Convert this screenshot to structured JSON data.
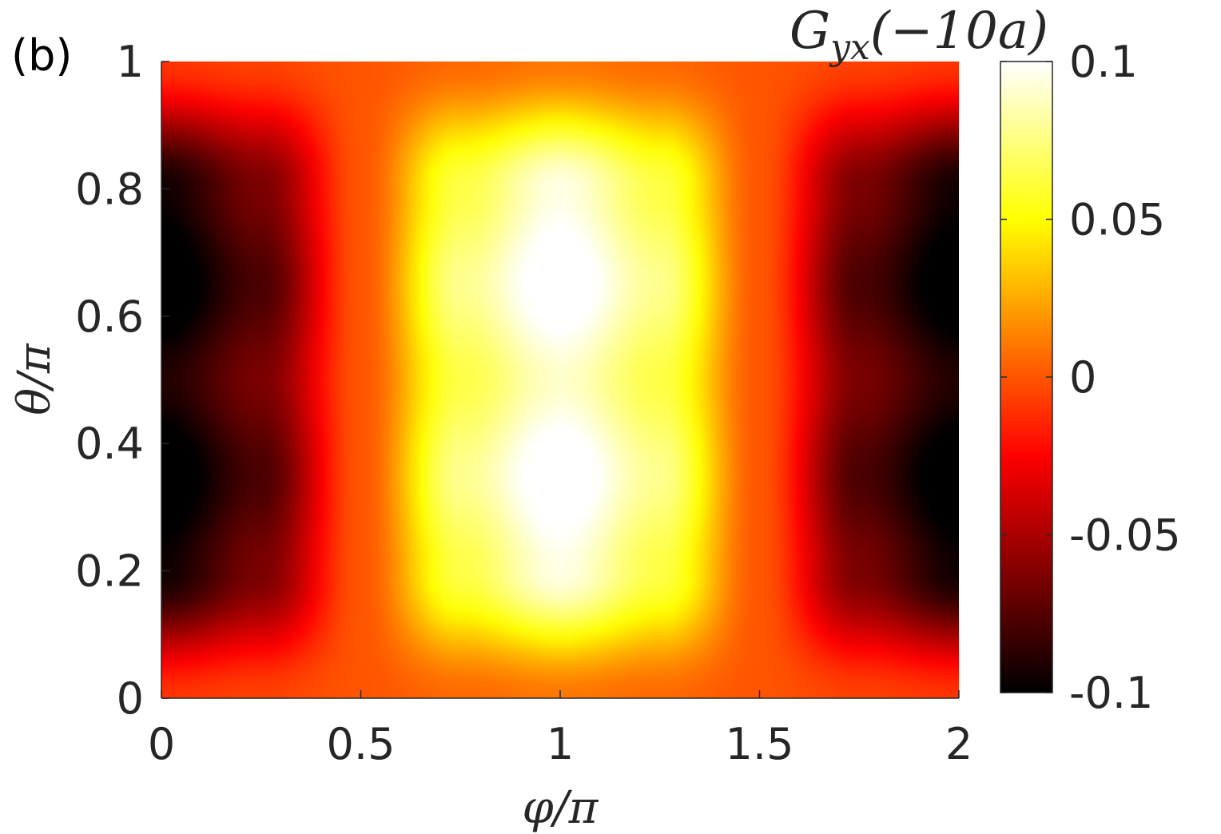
{
  "panel_label": "(b)",
  "chart_data": {
    "type": "heatmap",
    "title": "",
    "xlabel": "φ/π",
    "ylabel": "θ/π",
    "colorbar_label": "G_yx(−10a)",
    "colorbar_label_parts": {
      "base": "G",
      "sub": "yx",
      "arg": "(−10a)"
    },
    "colormap": "hot",
    "xlim": [
      0,
      2
    ],
    "ylim": [
      0,
      1
    ],
    "clim": [
      -0.1,
      0.1
    ],
    "x_ticks": [
      0,
      0.5,
      1,
      1.5,
      2
    ],
    "x_tick_labels": [
      "0",
      "0.5",
      "1",
      "1.5",
      "2"
    ],
    "y_ticks": [
      0,
      0.2,
      0.4,
      0.6,
      0.8,
      1
    ],
    "y_tick_labels": [
      "0",
      "0.2",
      "0.4",
      "0.6",
      "0.8",
      "1"
    ],
    "colorbar_ticks": [
      -0.1,
      -0.05,
      0,
      0.05,
      0.1
    ],
    "colorbar_tick_labels": [
      "-0.1",
      "-0.05",
      "0",
      "0.05",
      "0.1"
    ],
    "grid": false,
    "colorbar_position": "right",
    "x": [
      0,
      0.25,
      0.5,
      0.75,
      1,
      1.25,
      1.5,
      1.75,
      2
    ],
    "y": [
      0,
      0.2,
      0.35,
      0.5,
      0.65,
      0.8,
      1
    ],
    "z": [
      [
        -0.01,
        -0.006,
        0.0,
        0.006,
        0.01,
        0.006,
        0.0,
        -0.006,
        -0.01
      ],
      [
        -0.095,
        -0.064,
        0.0,
        0.064,
        0.095,
        0.064,
        0.0,
        -0.064,
        -0.095
      ],
      [
        -0.11,
        -0.078,
        0.0,
        0.078,
        0.11,
        0.078,
        0.0,
        -0.078,
        -0.11
      ],
      [
        -0.09,
        -0.064,
        0.0,
        0.064,
        0.09,
        0.064,
        0.0,
        -0.064,
        -0.09
      ],
      [
        -0.11,
        -0.078,
        0.0,
        0.078,
        0.11,
        0.078,
        0.0,
        -0.078,
        -0.11
      ],
      [
        -0.095,
        -0.064,
        0.0,
        0.064,
        0.095,
        0.064,
        0.0,
        -0.064,
        -0.095
      ],
      [
        -0.01,
        -0.006,
        0.0,
        0.006,
        0.01,
        0.006,
        0.0,
        -0.006,
        -0.01
      ]
    ]
  }
}
